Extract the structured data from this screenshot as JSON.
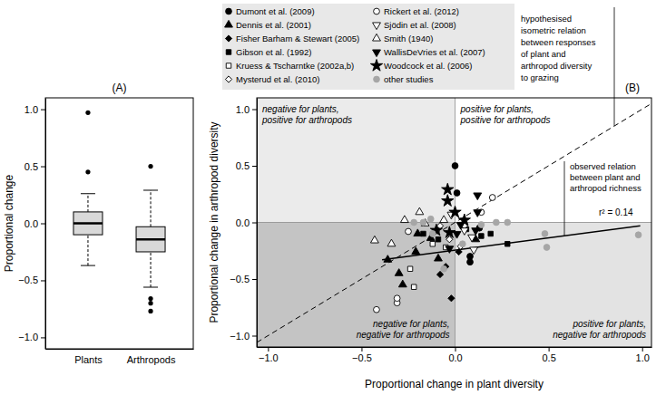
{
  "chart_data": [
    {
      "type": "box",
      "title": "(A)",
      "y_label": "Proportional change",
      "categories": [
        "Plants",
        "Arthropods"
      ],
      "color": "#d9d9d9",
      "boxes": [
        {
          "min": -0.37,
          "q1": -0.1,
          "median": 0.0,
          "q3": 0.1,
          "max": 0.26,
          "outliers": [
            0.97,
            0.45
          ]
        },
        {
          "min": -0.56,
          "q1": -0.25,
          "median": -0.14,
          "q3": -0.03,
          "max": 0.29,
          "outliers": [
            0.5,
            -0.66,
            -0.7,
            -0.77
          ]
        }
      ],
      "ylim": [
        -1.1,
        1.1
      ],
      "yticks": [
        {
          "value": -1,
          "label": "−1.0"
        },
        {
          "value": -0.5,
          "label": "−0.5"
        },
        {
          "value": 0,
          "label": "0.0"
        },
        {
          "value": 0.5,
          "label": "0.5"
        },
        {
          "value": 1,
          "label": "1.0"
        }
      ]
    },
    {
      "type": "scatter",
      "title": "(B)",
      "x_label": "Proportional change in plant diversity",
      "y_label": "Proportional change in arthropod diversity",
      "xlim": [
        -1.06,
        1.05
      ],
      "ylim": [
        -1.1,
        1.1
      ],
      "xticks": [
        {
          "value": -1,
          "label": "−1.0"
        },
        {
          "value": -0.5,
          "label": "−0.5"
        },
        {
          "value": 0,
          "label": "0.0"
        },
        {
          "value": 0.5,
          "label": "0.5"
        },
        {
          "value": 1,
          "label": "1.0"
        }
      ],
      "yticks": [
        {
          "value": -1,
          "label": "−1.0"
        },
        {
          "value": -0.5,
          "label": "−0.5"
        },
        {
          "value": 0,
          "label": "0.0"
        },
        {
          "value": 0.5,
          "label": "0.5"
        },
        {
          "value": 1,
          "label": "1.0"
        }
      ],
      "legend": "top",
      "series": [
        {
          "name": "Dumont et al. (2009)",
          "marker": "circle",
          "color": "#000000",
          "x": [
            0.0,
            0.01,
            0.08,
            0.08,
            0.13
          ],
          "y": [
            0.5,
            0.26,
            -0.3,
            -0.35,
            -0.05
          ]
        },
        {
          "name": "Dennis et al. (2001)",
          "marker": "triangle-up",
          "color": "#000000",
          "x": [
            -0.36,
            -0.3,
            -0.28,
            -0.21,
            -0.2,
            -0.13,
            -0.09,
            0.11
          ],
          "y": [
            -0.33,
            -0.45,
            -0.55,
            -0.26,
            -0.1,
            -0.14,
            -0.32,
            -0.15
          ]
        },
        {
          "name": "Fisher Barham & Stewart (2005)",
          "marker": "diamond",
          "color": "#000000",
          "x": [
            -0.08,
            -0.05,
            -0.02,
            0.02
          ],
          "y": [
            -0.46,
            -0.39,
            -0.67,
            -0.26
          ]
        },
        {
          "name": "Gibson et al. (1992)",
          "marker": "square",
          "color": "#000000",
          "x": [
            -0.17,
            -0.09,
            0.06,
            0.14,
            0.19,
            0.28
          ],
          "y": [
            -0.1,
            -0.15,
            -0.06,
            -0.12,
            -0.1,
            -0.19
          ]
        },
        {
          "name": "Kruess & Tscharntke (2002a,b)",
          "marker": "square-open",
          "color": "#000000",
          "x": [
            -0.24,
            -0.22,
            -0.12,
            -0.05
          ],
          "y": [
            -0.41,
            -0.57,
            -0.19,
            -0.22
          ]
        },
        {
          "name": "Mysterud et al. (2010)",
          "marker": "diamond-open",
          "color": "#000000",
          "x": [
            -0.08,
            0.05,
            0.03,
            -0.03
          ],
          "y": [
            -0.03,
            -0.03,
            -0.21,
            -0.15
          ]
        },
        {
          "name": "Rickert et al. (2012)",
          "marker": "circle-open",
          "color": "#000000",
          "x": [
            -0.42,
            -0.31,
            -0.31,
            0.2,
            0.14,
            -0.25
          ],
          "y": [
            -0.77,
            -0.71,
            -0.67,
            0.22,
            0.09,
            -0.08
          ]
        },
        {
          "name": "Sjödin et al. (2008)",
          "marker": "triangle-down-open",
          "color": "#000000",
          "x": [
            0.1,
            0.09,
            -0.02,
            0.05
          ],
          "y": [
            -0.24,
            -0.13,
            0.07,
            -0.07
          ]
        },
        {
          "name": "Smith (1940)",
          "marker": "triangle-up-open",
          "color": "#000000",
          "x": [
            -0.43,
            -0.34,
            -0.27,
            -0.19,
            -0.16,
            -0.06
          ],
          "y": [
            -0.16,
            -0.19,
            0.02,
            0.09,
            -0.01,
            0.02
          ]
        },
        {
          "name": "WallisDeVries et al. (2007)",
          "marker": "triangle-down",
          "color": "#000000",
          "x": [
            0.12,
            0.12,
            0.11,
            0.03,
            -0.03,
            0.01
          ],
          "y": [
            0.24,
            0.09,
            -0.07,
            -0.02,
            -0.23,
            -0.1
          ]
        },
        {
          "name": "Woodcock et al. (2006)",
          "marker": "star",
          "color": "#000000",
          "x": [
            -0.04,
            -0.04,
            0.0,
            -0.03,
            -0.1,
            0.05
          ],
          "y": [
            0.29,
            0.19,
            0.09,
            -0.09,
            -0.07,
            0.02
          ]
        },
        {
          "name": "other studies",
          "marker": "circle",
          "color": "#a6a6a6",
          "x": [
            0.48,
            0.49,
            0.98,
            -0.22,
            -0.17,
            -0.12,
            0.14,
            0.22,
            0.28,
            0.04,
            -0.06,
            -0.13
          ],
          "y": [
            -0.1,
            -0.22,
            -0.11,
            0.0,
            0.0,
            -0.1,
            -0.02,
            0.0,
            0.0,
            -0.19,
            -0.41,
            0.03
          ]
        }
      ],
      "reference_line": {
        "x": [
          -1.06,
          1.05
        ],
        "y": [
          -1.06,
          1.05
        ],
        "line_style": "dashed"
      },
      "fit": {
        "x": [
          -0.39,
          0.99
        ],
        "y": [
          -0.33,
          -0.03
        ],
        "line_style": "solid",
        "label": "r² = 0.14"
      },
      "annotations": [
        {
          "lines": [
            "hypothesised",
            "isometric relation",
            "between responses",
            "of plant and",
            "arthropod diversity",
            "to grazing"
          ]
        },
        {
          "lines": [
            "observed relation",
            "between plant and",
            "arthropod richness"
          ]
        }
      ],
      "quadrant_labels": [
        [
          "negative for plants,",
          "positive for arthropods"
        ],
        [
          "positive for plants,",
          "positive for arthropods"
        ],
        [
          "negative for plants,",
          "negative for arthropods"
        ],
        [
          "positive for plants,",
          "negative for arthropods"
        ]
      ]
    }
  ]
}
